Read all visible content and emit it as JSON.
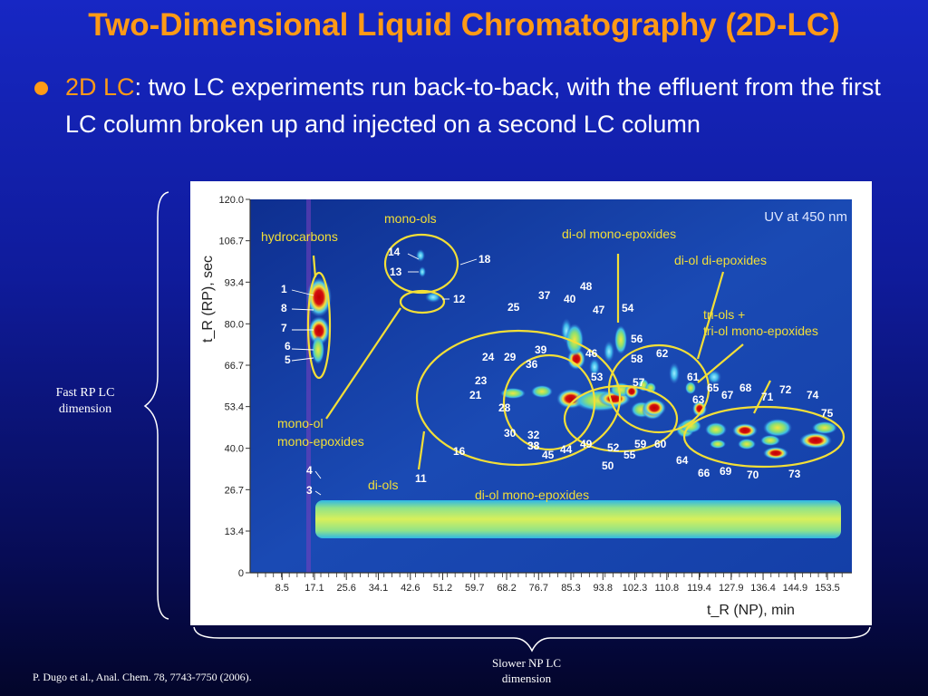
{
  "slide": {
    "title": "Two-Dimensional Liquid Chromatography (2D-LC)",
    "bullet_term": "2D LC",
    "bullet_text": ":  two LC experiments run back-to-back, with the effluent from the first LC column broken up and injected on a second LC column",
    "side_label_y": "Fast RP LC dimension",
    "side_label_x": "Slower NP LC dimension",
    "citation": "P. Dugo et al., Anal. Chem. 78, 7743-7750 (2006).",
    "colors": {
      "accent": "#ff9a16",
      "background": "#0f1b9a",
      "annotation": "#f3df37",
      "peak": "#b01010"
    }
  },
  "chart_data": {
    "type": "heatmap",
    "note_label": "UV at 450 nm",
    "xlabel": "t_R (NP), min",
    "ylabel": "t_R (RP), sec",
    "xlim": [
      0,
      160
    ],
    "ylim": [
      0,
      120
    ],
    "x_ticks": [
      "8.5",
      "17.1",
      "25.6",
      "34.1",
      "42.6",
      "51.2",
      "59.7",
      "68.2",
      "76.7",
      "85.3",
      "93.8",
      "102.3",
      "110.8",
      "119.4",
      "127.9",
      "136.4",
      "144.9",
      "153.5"
    ],
    "y_ticks": [
      "0",
      "13.4",
      "26.7",
      "40.0",
      "53.4",
      "66.7",
      "80.0",
      "93.4",
      "106.7",
      "120.0"
    ],
    "group_labels": [
      {
        "text": "hydrocarbons"
      },
      {
        "text": "mono-ols"
      },
      {
        "text": "di-ol mono-epoxides"
      },
      {
        "text": "di-ol di-epoxides"
      },
      {
        "text": "tri-ols +"
      },
      {
        "text": "tri-ol mono-epoxides"
      },
      {
        "text": "mono-ol"
      },
      {
        "text": "mono-epoxides"
      },
      {
        "text": "di-ols"
      },
      {
        "text": "di-ol mono-epoxides"
      }
    ],
    "peak_labels": [
      "1",
      "3",
      "4",
      "5",
      "6",
      "7",
      "8",
      "11",
      "12",
      "13",
      "14",
      "16",
      "18",
      "21",
      "23",
      "24",
      "25",
      "28",
      "29",
      "30",
      "32",
      "33",
      "36",
      "37",
      "38",
      "39",
      "40",
      "44",
      "45",
      "46",
      "47",
      "48",
      "49",
      "50",
      "52",
      "53",
      "54",
      "55",
      "56",
      "57",
      "58",
      "59",
      "60",
      "61",
      "62",
      "63",
      "64",
      "65",
      "66",
      "67",
      "68",
      "69",
      "70",
      "71",
      "72",
      "73",
      "74",
      "75"
    ]
  }
}
